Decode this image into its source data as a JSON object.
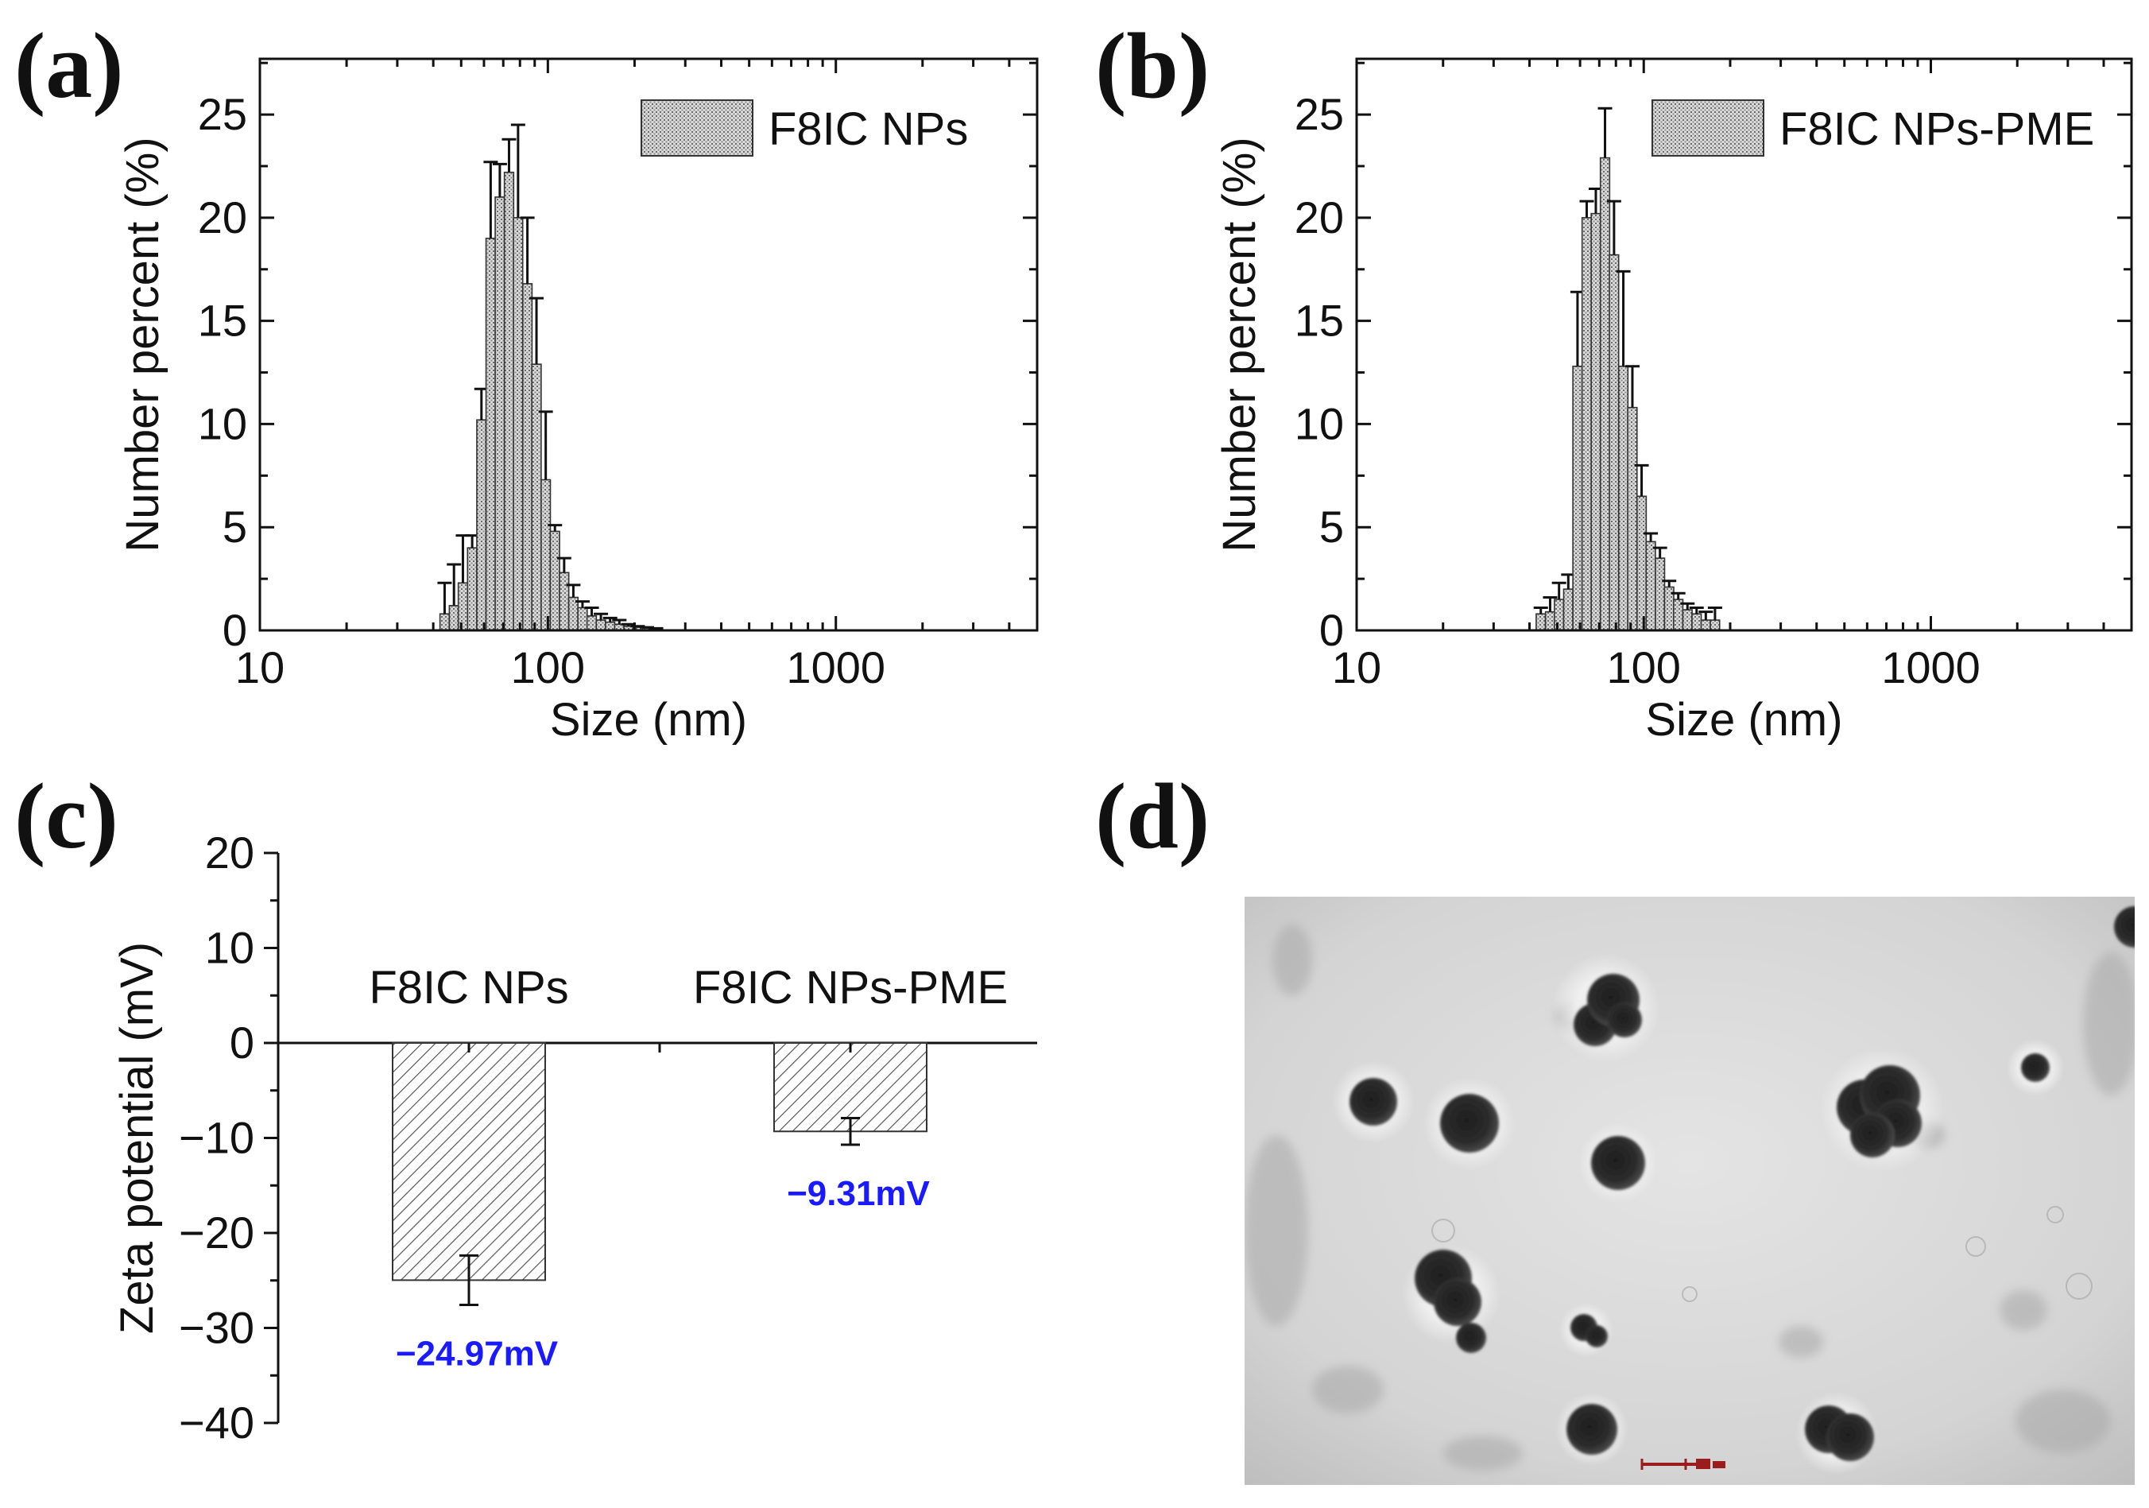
{
  "panels": {
    "a": {
      "letter": "(a)"
    },
    "b": {
      "letter": "(b)"
    },
    "c": {
      "letter": "(c)"
    },
    "d": {
      "letter": "(d)"
    }
  },
  "colors": {
    "axis": "#111111",
    "bar_fill": "#c8c8c8",
    "bar_stroke": "#333333",
    "annotation_blue": "#1a1aff",
    "scale_bar": "#9b1c1c"
  },
  "chart_data": [
    {
      "id": "a",
      "type": "bar",
      "xscale": "log",
      "xlabel": "Size (nm)",
      "ylabel": "Number percent (%)",
      "xlim": [
        10,
        5000
      ],
      "ylim": [
        0,
        27.7
      ],
      "xticks": [
        10,
        100,
        1000
      ],
      "xtick_labels": [
        "10",
        "100",
        "1000"
      ],
      "yticks": [
        0,
        5,
        10,
        15,
        20,
        25
      ],
      "ytick_labels": [
        "0",
        "5",
        "10",
        "15",
        "20",
        "25"
      ],
      "legend": {
        "label": "F8IC NPs",
        "position": "top-right"
      },
      "series": [
        {
          "name": "F8IC NPs",
          "x": [
            43.8,
            47.2,
            50.7,
            54.6,
            58.8,
            63.3,
            68.1,
            73.3,
            78.8,
            84.9,
            91.3,
            98.3,
            105.8,
            113.9,
            122.6,
            131.9,
            142.0,
            152.8,
            164.5,
            177.1,
            190.6,
            205.1,
            220.8,
            237.6
          ],
          "y": [
            0.8,
            1.2,
            2.3,
            4.0,
            10.2,
            19.0,
            21.0,
            22.2,
            20.0,
            16.8,
            12.9,
            7.3,
            4.8,
            2.8,
            1.6,
            1.1,
            0.7,
            0.5,
            0.4,
            0.3,
            0.2,
            0.15,
            0.1,
            0.05
          ],
          "error": [
            1.5,
            2.0,
            2.3,
            0.6,
            1.5,
            3.7,
            1.6,
            1.6,
            4.5,
            3.2,
            3.2,
            3.3,
            0.3,
            0.7,
            0.6,
            0.3,
            0.4,
            0.3,
            0.2,
            0.2,
            0.1,
            0.05,
            0.05,
            0.05
          ]
        }
      ]
    },
    {
      "id": "b",
      "type": "bar",
      "xscale": "log",
      "xlabel": "Size (nm)",
      "ylabel": "Number percent (%)",
      "xlim": [
        10,
        5000
      ],
      "ylim": [
        0,
        27.7
      ],
      "xticks": [
        10,
        100,
        1000
      ],
      "xtick_labels": [
        "10",
        "100",
        "1000"
      ],
      "yticks": [
        0,
        5,
        10,
        15,
        20,
        25
      ],
      "ytick_labels": [
        "0",
        "5",
        "10",
        "15",
        "20",
        "25"
      ],
      "legend": {
        "label": "F8IC NPs-PME",
        "position": "top-right"
      },
      "series": [
        {
          "name": "F8IC NPs-PME",
          "x": [
            43.8,
            47.2,
            50.7,
            54.6,
            58.8,
            63.3,
            68.1,
            73.3,
            78.8,
            84.9,
            91.3,
            98.3,
            105.8,
            113.9,
            122.6,
            131.9,
            142.0,
            152.8,
            164.5,
            177.1
          ],
          "y": [
            0.8,
            0.9,
            1.5,
            2.0,
            12.8,
            20.0,
            20.2,
            22.9,
            18.2,
            12.8,
            10.8,
            6.5,
            4.3,
            3.5,
            2.1,
            1.5,
            1.0,
            0.8,
            0.5,
            0.5
          ],
          "error": [
            0.3,
            0.7,
            0.8,
            0.7,
            3.6,
            0.8,
            1.2,
            2.4,
            2.6,
            4.6,
            2.0,
            1.5,
            0.4,
            0.5,
            0.3,
            0.3,
            0.3,
            0.3,
            0.4,
            0.6
          ]
        }
      ]
    },
    {
      "id": "c",
      "type": "bar",
      "ylabel": "Zeta potential (mV)",
      "xlabel": "",
      "ylim": [
        -40,
        20
      ],
      "yticks": [
        -40,
        -30,
        -20,
        -10,
        0,
        10,
        20
      ],
      "ytick_labels": [
        "−40",
        "−30",
        "−20",
        "−10",
        "0",
        "10",
        "20"
      ],
      "categories": [
        "F8IC NPs",
        "F8IC NPs-PME"
      ],
      "values": [
        -24.97,
        -9.31
      ],
      "errors": [
        2.6,
        1.4
      ],
      "annotations": [
        "−24.97mV",
        "−9.31mV"
      ]
    }
  ]
}
